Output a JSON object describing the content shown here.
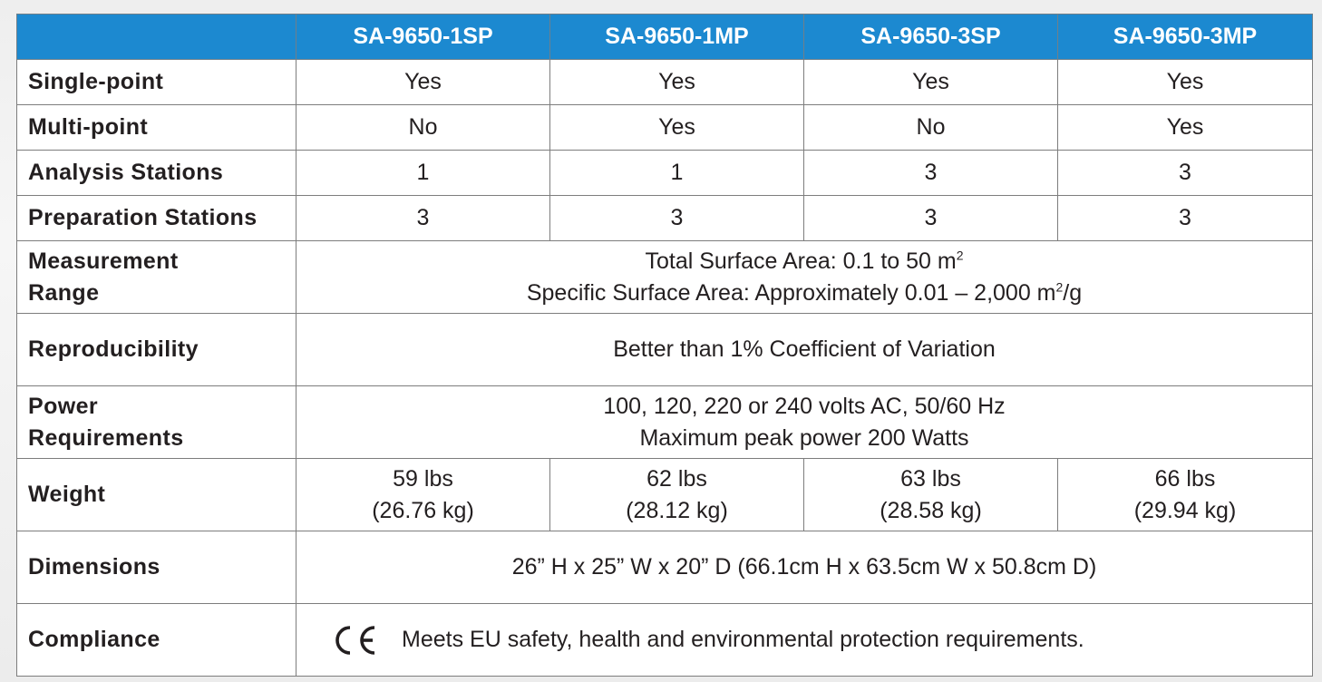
{
  "header": {
    "corner": "",
    "models": [
      "SA-9650-1SP",
      "SA-9650-1MP",
      "SA-9650-3SP",
      "SA-9650-3MP"
    ]
  },
  "rows": {
    "single_point": {
      "label": "Single-point",
      "values": [
        "Yes",
        "Yes",
        "Yes",
        "Yes"
      ]
    },
    "multi_point": {
      "label": "Multi-point",
      "values": [
        "No",
        "Yes",
        "No",
        "Yes"
      ]
    },
    "analysis_stations": {
      "label": "Analysis Stations",
      "values": [
        "1",
        "1",
        "3",
        "3"
      ]
    },
    "preparation_stations": {
      "label": "Preparation Stations",
      "values": [
        "3",
        "3",
        "3",
        "3"
      ]
    },
    "measurement_range": {
      "label_line1": "Measurement",
      "label_line2": "Range",
      "line1_prefix": "Total Surface Area: 0.1 to 50 m",
      "line1_sup": "2",
      "line2_prefix": "Specific Surface Area: Approximately 0.01 – 2,000 m",
      "line2_sup": "2",
      "line2_suffix": "/g"
    },
    "reproducibility": {
      "label": "Reproducibility",
      "value": "Better than 1% Coefficient of Variation"
    },
    "power": {
      "label_line1": "Power",
      "label_line2": "Requirements",
      "line1": "100, 120, 220 or 240 volts AC, 50/60 Hz",
      "line2": "Maximum peak power 200 Watts"
    },
    "weight": {
      "label": "Weight",
      "values": [
        {
          "lbs": "59 lbs",
          "kg": "(26.76 kg)"
        },
        {
          "lbs": "62 lbs",
          "kg": "(28.12 kg)"
        },
        {
          "lbs": "63 lbs",
          "kg": "(28.58 kg)"
        },
        {
          "lbs": "66 lbs",
          "kg": "(29.94 kg)"
        }
      ]
    },
    "dimensions": {
      "label": "Dimensions",
      "value": "26” H x 25” W x 20” D (66.1cm H x 63.5cm W x 50.8cm D)"
    },
    "compliance": {
      "label": "Compliance",
      "mark": "CE",
      "value": "Meets EU safety, health and environmental protection requirements."
    }
  },
  "colors": {
    "header_bg": "#1c89d0",
    "header_text": "#ffffff",
    "border": "#7d7d7d",
    "text": "#231f20"
  }
}
